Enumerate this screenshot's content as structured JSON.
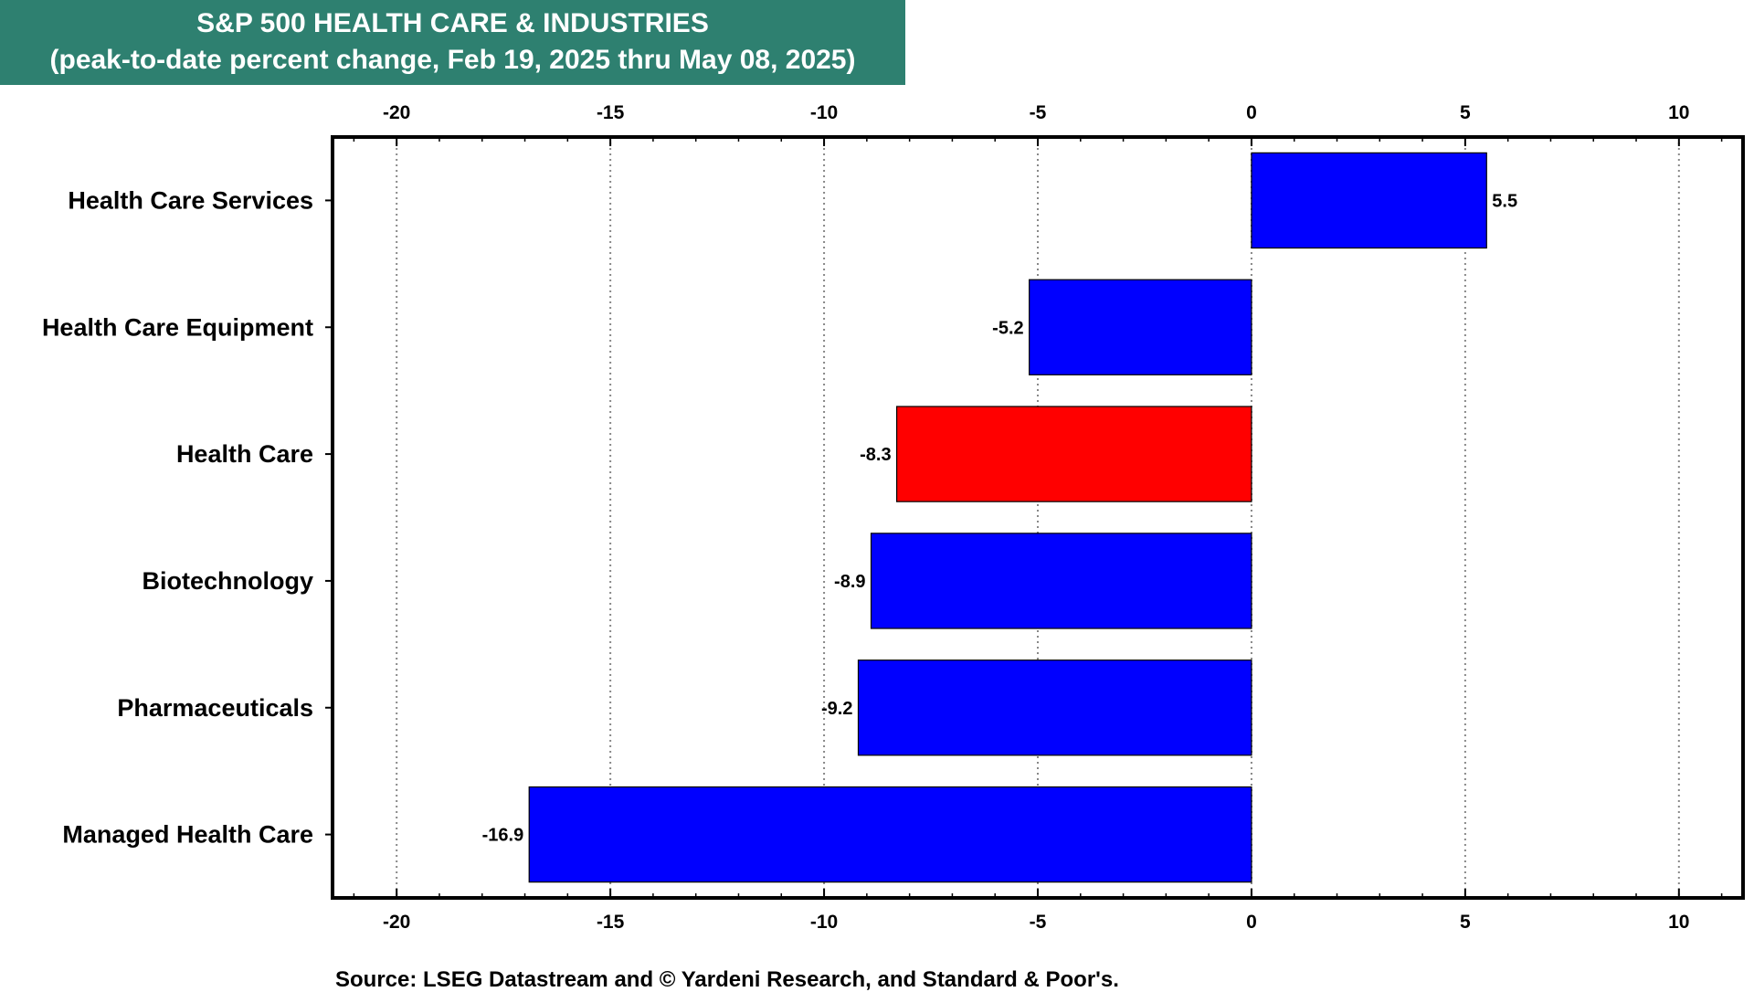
{
  "header": {
    "title_line1": "S&P 500 HEALTH CARE & INDUSTRIES",
    "title_line2": "(peak-to-date percent change, Feb 19, 2025 thru May 08, 2025)"
  },
  "footer": {
    "source": "Source: LSEG Datastream and © Yardeni Research, and Standard & Poor's."
  },
  "colors": {
    "title_bg": "#2e8070",
    "default_bar": "#0000ff",
    "highlight_bar": "#ff0000"
  },
  "chart_data": {
    "type": "bar",
    "orientation": "horizontal",
    "title": "S&P 500 HEALTH CARE & INDUSTRIES",
    "subtitle": "(peak-to-date percent change, Feb 19, 2025 thru May 08, 2025)",
    "xlim": [
      -21.5,
      11.5
    ],
    "xticks": [
      -20,
      -15,
      -10,
      -5,
      0,
      5,
      10
    ],
    "grid": true,
    "categories": [
      "Health Care Services",
      "Health Care Equipment",
      "Health Care",
      "Biotechnology",
      "Pharmaceuticals",
      "Managed Health Care"
    ],
    "values": [
      5.5,
      -5.2,
      -8.3,
      -8.9,
      -9.2,
      -16.9
    ],
    "labels": [
      "5.5",
      "-5.2",
      "-8.3",
      "-8.9",
      "-9.2",
      "-16.9"
    ],
    "highlight_index": 2
  }
}
